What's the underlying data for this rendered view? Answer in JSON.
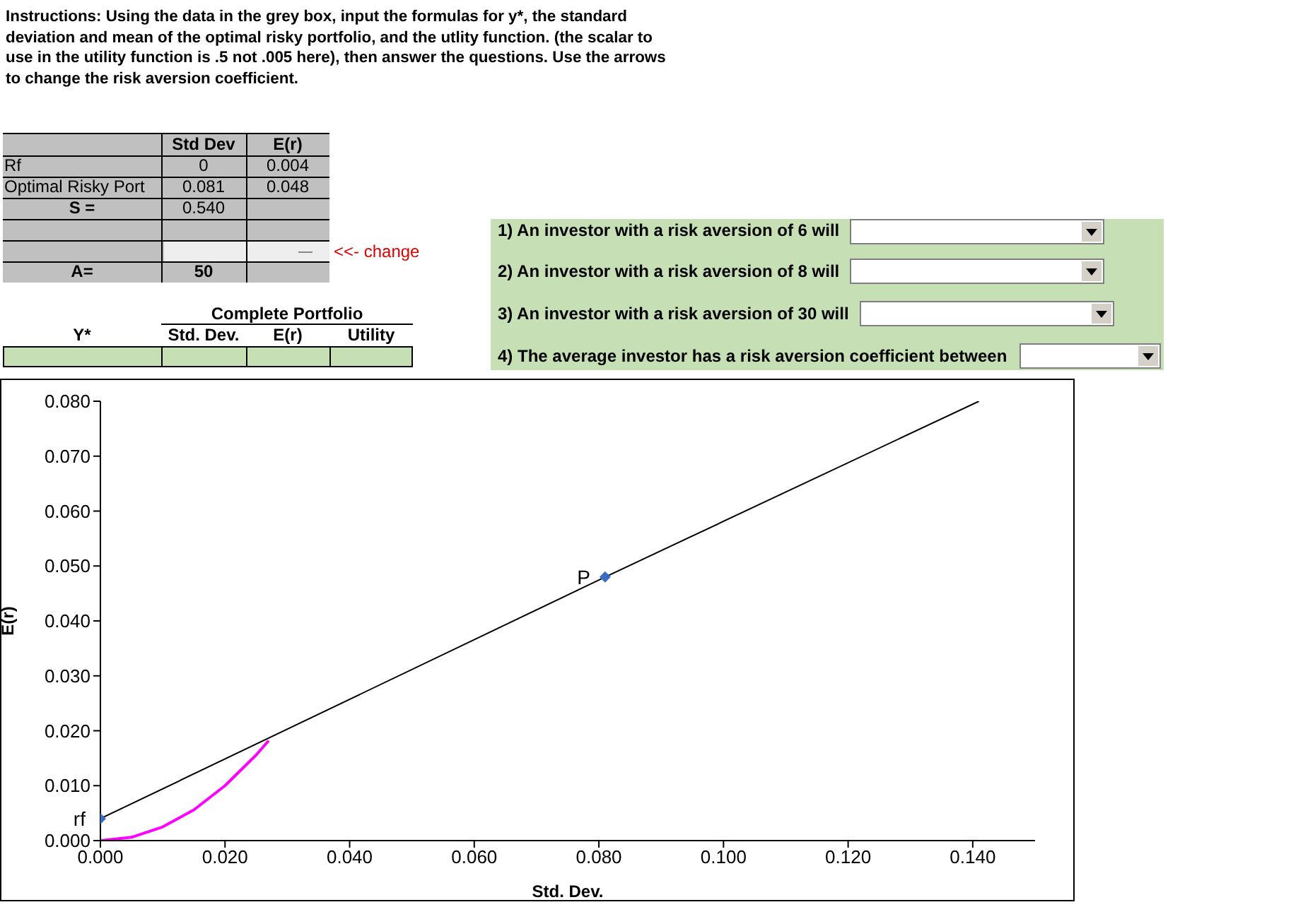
{
  "chart_data": [
    {
      "type": "other",
      "title": "Instructions: Using the data in the grey box, input the formulas for y*, the standard deviation and mean of the optimal risky portfolio, and the utlity function.  (the scalar to use in the utility function is .5 not .005 here), then answer the questions.  Use the arrows to change the risk aversion coefficient.",
      "annotations": [
        "Std Dev",
        "E(r)",
        "Rf",
        "0",
        "0.004",
        "Optimal Risky Port",
        "0.081",
        "0.048",
        "S =",
        "0.540",
        "<<- change",
        "A=",
        "50",
        "Complete Portfolio",
        "Y*",
        "Std. Dev.",
        "E(r)",
        "Utility",
        "1) An investor with a risk aversion of 6 will",
        "2) An investor with a risk aversion of 8 will",
        "3) An investor with a risk aversion of 30 will",
        "4) The average investor has a risk aversion coefficient between"
      ]
    },
    {
      "type": "line",
      "xlabel": "Std. Dev.",
      "ylabel": "E(r)",
      "xlim": [
        0,
        0.15
      ],
      "ylim": [
        0,
        0.08
      ],
      "xticks": [
        {
          "value": 0,
          "label": "0.000"
        },
        {
          "value": 0.02,
          "label": "0.020"
        },
        {
          "value": 0.04,
          "label": "0.040"
        },
        {
          "value": 0.06,
          "label": "0.060"
        },
        {
          "value": 0.08,
          "label": "0.080"
        },
        {
          "value": 0.1,
          "label": "0.100"
        },
        {
          "value": 0.12,
          "label": "0.120"
        },
        {
          "value": 0.14,
          "label": "0.140"
        }
      ],
      "yticks": [
        {
          "value": 0,
          "label": "0.000"
        },
        {
          "value": 0.01,
          "label": "0.010"
        },
        {
          "value": 0.02,
          "label": "0.020"
        },
        {
          "value": 0.03,
          "label": "0.030"
        },
        {
          "value": 0.04,
          "label": "0.040"
        },
        {
          "value": 0.05,
          "label": "0.050"
        },
        {
          "value": 0.06,
          "label": "0.060"
        },
        {
          "value": 0.07,
          "label": "0.070"
        },
        {
          "value": 0.08,
          "label": "0.080"
        }
      ],
      "series": [
        {
          "type": "line",
          "color": "#000000",
          "marker": "none",
          "x": [
            0,
            0.081,
            0.141
          ],
          "values": [
            0.004,
            0.048,
            0.08
          ]
        },
        {
          "type": "line",
          "color": "#ff00ff",
          "marker": "none",
          "x": [
            0,
            0.005,
            0.01,
            0.015,
            0.02,
            0.025,
            0.027
          ],
          "values": [
            0,
            0.0006,
            0.0025,
            0.0056,
            0.01,
            0.0156,
            0.0182
          ]
        },
        {
          "type": "scatter",
          "name": "rf",
          "color": "#3a6cc0",
          "marker": "diamond",
          "x": [
            0
          ],
          "values": [
            0.004
          ]
        },
        {
          "type": "scatter",
          "name": "P",
          "color": "#3a6cc0",
          "marker": "diamond",
          "x": [
            0.081
          ],
          "values": [
            0.048
          ]
        }
      ]
    }
  ]
}
